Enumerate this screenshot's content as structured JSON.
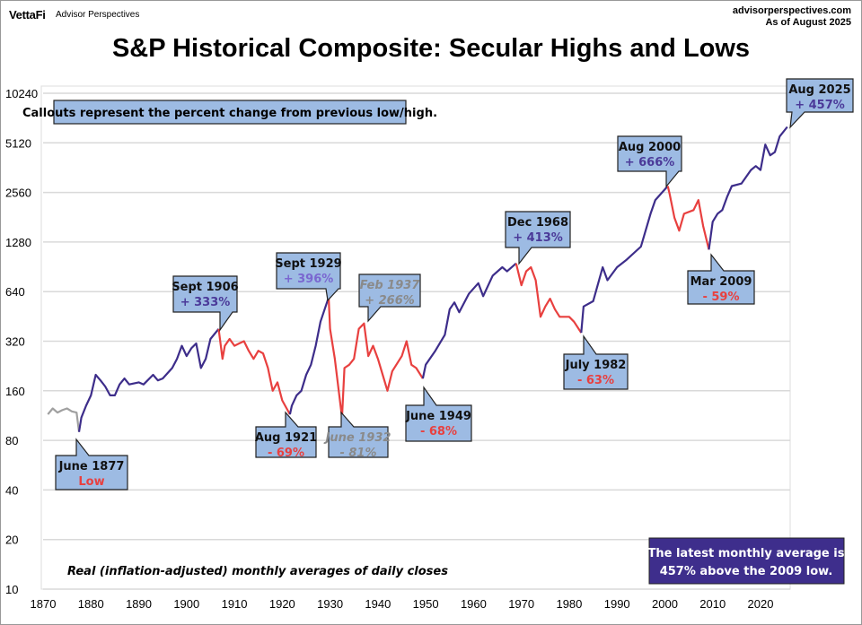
{
  "header": {
    "brand": "VettaFi",
    "brand_sub": "Advisor Perspectives",
    "source_site": "advisorperspectives.com",
    "as_of": "As of August 2025"
  },
  "chart_data": {
    "type": "line",
    "title": "S&P Historical Composite: Secular Highs and Lows",
    "subtitle": "Real (inflation-adjusted) monthly averages of daily closes",
    "note": "Callouts represent the percent change from previous low/high.",
    "summary_box": [
      "The latest monthly average is",
      "457% above the 2009 low."
    ],
    "y_scale": "log2",
    "ylim": [
      10,
      10240
    ],
    "y_ticks": [
      "10",
      "20",
      "40",
      "80",
      "160",
      "320",
      "640",
      "1280",
      "2560",
      "5120",
      "10240"
    ],
    "xlim": [
      1870,
      2026
    ],
    "x_ticks": [
      "1870",
      "1880",
      "1890",
      "1900",
      "1910",
      "1920",
      "1930",
      "1940",
      "1950",
      "1960",
      "1970",
      "1980",
      "1990",
      "2000",
      "2010",
      "2020"
    ],
    "grid": "horizontal",
    "colors": {
      "bull": "#3d2d8a",
      "bear": "#e8403f",
      "pre": "#a0a0a0",
      "callout_fill": "#9dbbe3",
      "summary_fill": "#3e2e8c"
    },
    "segments": [
      {
        "trend": "pre",
        "points": [
          [
            1871,
            115
          ],
          [
            1872,
            125
          ],
          [
            1873,
            118
          ],
          [
            1874,
            122
          ],
          [
            1875,
            125
          ],
          [
            1876,
            120
          ],
          [
            1877,
            118
          ],
          [
            1877.5,
            90
          ]
        ]
      },
      {
        "trend": "bull",
        "points": [
          [
            1877.5,
            90
          ],
          [
            1878,
            110
          ],
          [
            1879,
            130
          ],
          [
            1880,
            150
          ],
          [
            1881,
            200
          ],
          [
            1882,
            185
          ],
          [
            1883,
            170
          ],
          [
            1884,
            150
          ],
          [
            1885,
            150
          ],
          [
            1886,
            175
          ],
          [
            1887,
            190
          ],
          [
            1888,
            175
          ],
          [
            1890,
            180
          ],
          [
            1891,
            175
          ],
          [
            1893,
            200
          ],
          [
            1894,
            185
          ],
          [
            1895,
            190
          ],
          [
            1897,
            220
          ],
          [
            1898,
            250
          ],
          [
            1899,
            300
          ],
          [
            1900,
            260
          ],
          [
            1901,
            290
          ],
          [
            1902,
            310
          ],
          [
            1903,
            220
          ],
          [
            1904,
            250
          ],
          [
            1905,
            330
          ],
          [
            1906.7,
            380
          ]
        ]
      },
      {
        "trend": "bear",
        "points": [
          [
            1906.7,
            380
          ],
          [
            1907.5,
            250
          ],
          [
            1908,
            300
          ],
          [
            1909,
            330
          ],
          [
            1910,
            300
          ],
          [
            1911,
            310
          ],
          [
            1912,
            320
          ],
          [
            1913,
            280
          ],
          [
            1914,
            250
          ],
          [
            1915,
            280
          ],
          [
            1916,
            270
          ],
          [
            1917,
            220
          ],
          [
            1918,
            160
          ],
          [
            1919,
            180
          ],
          [
            1920,
            140
          ],
          [
            1921.6,
            115
          ]
        ]
      },
      {
        "trend": "bull",
        "points": [
          [
            1921.6,
            115
          ],
          [
            1922,
            130
          ],
          [
            1923,
            150
          ],
          [
            1924,
            160
          ],
          [
            1925,
            200
          ],
          [
            1926,
            230
          ],
          [
            1927,
            300
          ],
          [
            1928,
            420
          ],
          [
            1929.7,
            590
          ]
        ]
      },
      {
        "trend": "bear",
        "points": [
          [
            1929.7,
            590
          ],
          [
            1930,
            380
          ],
          [
            1931,
            250
          ],
          [
            1932.5,
            110
          ],
          [
            1933,
            220
          ],
          [
            1934,
            230
          ],
          [
            1935,
            250
          ],
          [
            1936,
            380
          ],
          [
            1937.1,
            410
          ],
          [
            1938,
            260
          ],
          [
            1939,
            300
          ],
          [
            1940,
            250
          ],
          [
            1941,
            200
          ],
          [
            1942,
            160
          ],
          [
            1943,
            210
          ],
          [
            1945,
            260
          ],
          [
            1946,
            320
          ],
          [
            1947,
            230
          ],
          [
            1948,
            220
          ],
          [
            1949.4,
            190
          ]
        ]
      },
      {
        "trend": "bull",
        "points": [
          [
            1949.4,
            190
          ],
          [
            1950,
            230
          ],
          [
            1952,
            280
          ],
          [
            1954,
            350
          ],
          [
            1955,
            500
          ],
          [
            1956,
            550
          ],
          [
            1957,
            480
          ],
          [
            1959,
            620
          ],
          [
            1961,
            720
          ],
          [
            1962,
            600
          ],
          [
            1964,
            800
          ],
          [
            1966,
            900
          ],
          [
            1967,
            850
          ],
          [
            1968.9,
            950
          ]
        ]
      },
      {
        "trend": "bear",
        "points": [
          [
            1968.9,
            950
          ],
          [
            1970,
            700
          ],
          [
            1971,
            850
          ],
          [
            1972,
            900
          ],
          [
            1973,
            750
          ],
          [
            1974,
            450
          ],
          [
            1975,
            520
          ],
          [
            1976,
            580
          ],
          [
            1977,
            500
          ],
          [
            1978,
            450
          ],
          [
            1980,
            450
          ],
          [
            1981,
            420
          ],
          [
            1982.5,
            360
          ]
        ]
      },
      {
        "trend": "bull",
        "points": [
          [
            1982.5,
            360
          ],
          [
            1983,
            520
          ],
          [
            1985,
            560
          ],
          [
            1987,
            900
          ],
          [
            1988,
            750
          ],
          [
            1990,
            900
          ],
          [
            1992,
            1000
          ],
          [
            1995,
            1200
          ],
          [
            1997,
            1900
          ],
          [
            1998,
            2300
          ],
          [
            2000.6,
            2800
          ]
        ]
      },
      {
        "trend": "bear",
        "points": [
          [
            2000.6,
            2800
          ],
          [
            2001,
            2500
          ],
          [
            2002,
            1800
          ],
          [
            2003,
            1500
          ],
          [
            2004,
            1900
          ],
          [
            2006,
            2000
          ],
          [
            2007,
            2300
          ],
          [
            2008,
            1600
          ],
          [
            2009.2,
            1150
          ]
        ]
      },
      {
        "trend": "bull",
        "points": [
          [
            2009.2,
            1150
          ],
          [
            2010,
            1700
          ],
          [
            2011,
            1900
          ],
          [
            2012,
            2000
          ],
          [
            2013,
            2400
          ],
          [
            2014,
            2800
          ],
          [
            2016,
            2900
          ],
          [
            2018,
            3500
          ],
          [
            2019,
            3700
          ],
          [
            2020,
            3500
          ],
          [
            2021,
            5000
          ],
          [
            2022,
            4300
          ],
          [
            2023,
            4500
          ],
          [
            2024,
            5600
          ],
          [
            2025.6,
            6400
          ]
        ]
      }
    ],
    "callouts": [
      {
        "label": "June 1877",
        "change": "Low",
        "style": "red"
      },
      {
        "label": "Sept 1906",
        "change": "+ 333%",
        "style": "purple"
      },
      {
        "label": "Aug 1921",
        "change": "- 69%",
        "style": "red"
      },
      {
        "label": "Sept 1929",
        "change": "+ 396%",
        "style": "lightpurple"
      },
      {
        "label": "June 1932",
        "change": "- 81%",
        "style": "gray"
      },
      {
        "label": "Feb 1937",
        "change": "+ 266%",
        "style": "gray"
      },
      {
        "label": "June 1949",
        "change": "- 68%",
        "style": "red"
      },
      {
        "label": "Dec 1968",
        "change": "+ 413%",
        "style": "purple"
      },
      {
        "label": "July 1982",
        "change": "- 63%",
        "style": "red"
      },
      {
        "label": "Aug 2000",
        "change": "+ 666%",
        "style": "purple"
      },
      {
        "label": "Mar 2009",
        "change": "- 59%",
        "style": "red"
      },
      {
        "label": "Aug 2025",
        "change": "+ 457%",
        "style": "purple"
      }
    ]
  }
}
